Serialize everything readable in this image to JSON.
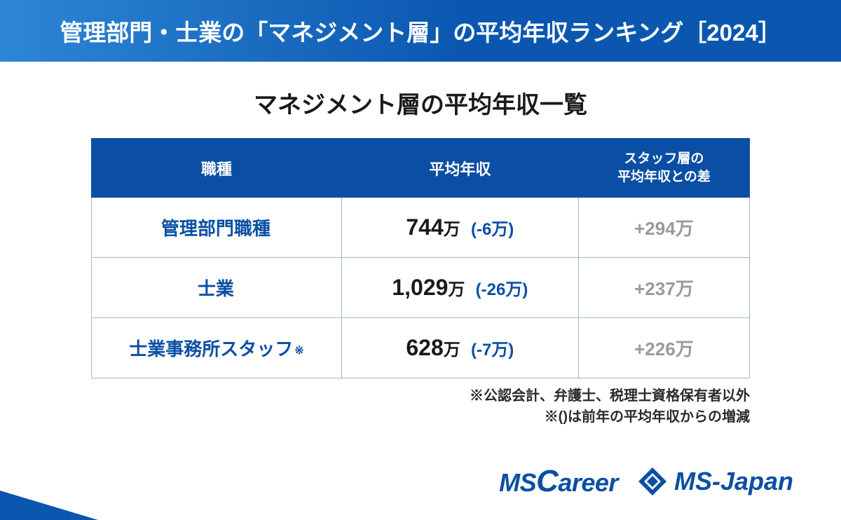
{
  "title": "管理部門・士業の「マネジメント層」の平均年収ランキング［2024］",
  "subtitle": "マネジメント層の平均年収一覧",
  "table": {
    "columns": [
      "職種",
      "平均年収",
      "スタッフ層の\n平均年収との差"
    ],
    "column_headers": {
      "job": "職種",
      "salary": "平均年収",
      "diff_line1": "スタッフ層の",
      "diff_line2": "平均年収との差"
    },
    "rows": [
      {
        "job": "管理部門職種",
        "job_note": "",
        "salary_value": "744",
        "salary_unit": "万",
        "change": "(-6万)",
        "diff": "+294万"
      },
      {
        "job": "士業",
        "job_note": "",
        "salary_value": "1,029",
        "salary_unit": "万",
        "change": "(-26万)",
        "diff": "+237万"
      },
      {
        "job": "士業事務所スタッフ",
        "job_note": "※",
        "salary_value": "628",
        "salary_unit": "万",
        "change": "(-7万)",
        "diff": "+226万"
      }
    ]
  },
  "footnotes": [
    "※公認会計、弁護士、税理士資格保有者以外",
    "※()は前年の平均年収からの増減"
  ],
  "logos": {
    "mscareer_ms": "MS",
    "mscareer_c": "C",
    "mscareer_rest": "areer",
    "msjapan": "MS-Japan"
  },
  "colors": {
    "banner_light": "#2d86d6",
    "banner_dark": "#0b57b0",
    "thead_bg": "#0a4fa3",
    "border": "#9fb8d5",
    "job_text": "#0a4fa3",
    "salary_text": "#1a1a1a",
    "change_text": "#0a4fa3",
    "diff_text": "#9a9a9a",
    "subtitle_text": "#1a1a1a",
    "footnote_text": "#2a2a2a",
    "logo_text": "#0a4fa3",
    "white": "#ffffff",
    "corner": "#0b57b0"
  },
  "style": {
    "title_fontsize": 33,
    "subtitle_fontsize": 34,
    "th_fontsize": 22,
    "salary_value_fontsize": 32,
    "change_fontsize": 24,
    "diff_fontsize": 26,
    "footnote_fontsize": 20,
    "border_width": 1
  }
}
